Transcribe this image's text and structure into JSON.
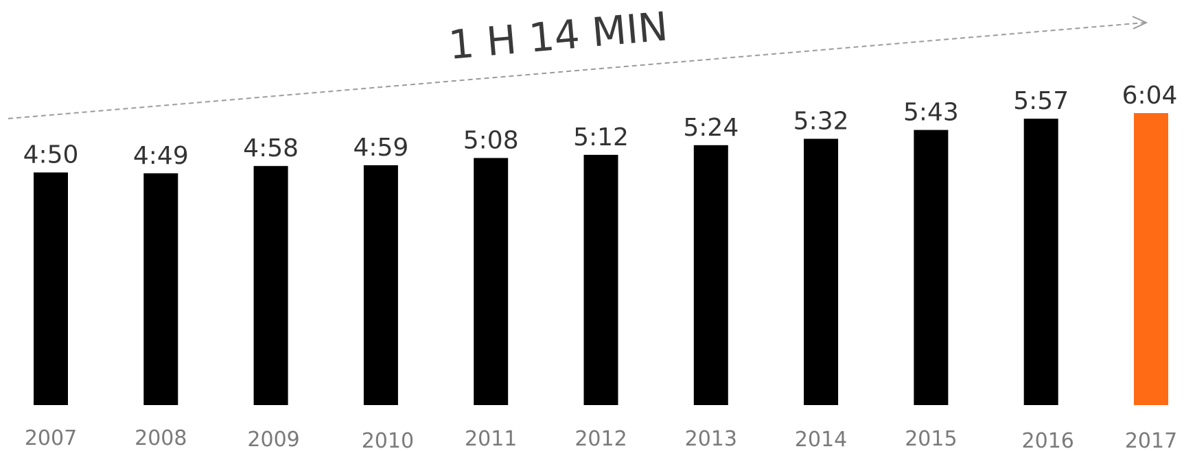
{
  "chart_data": {
    "type": "bar",
    "title": "",
    "xlabel": "",
    "ylabel": "",
    "categories": [
      "2007",
      "2008",
      "2009",
      "2010",
      "2011",
      "2012",
      "2013",
      "2014",
      "2015",
      "2016",
      "2017"
    ],
    "value_labels": [
      "4:50",
      "4:49",
      "4:58",
      "4:59",
      "5:08",
      "5:12",
      "5:24",
      "5:32",
      "5:43",
      "5:57",
      "6:04"
    ],
    "values_minutes": [
      290,
      289,
      298,
      299,
      308,
      312,
      324,
      332,
      343,
      357,
      364
    ],
    "ylim": [
      0,
      364
    ],
    "grid": false,
    "legend": "none",
    "highlight_index": 10,
    "trend_annotation": "1 H 14 MIN"
  },
  "colors": {
    "bar": "#000000",
    "highlight": "#ff6a14",
    "trend_line": "#9a9a9a",
    "value_text": "#333333",
    "year_text": "#7a7a7a"
  }
}
